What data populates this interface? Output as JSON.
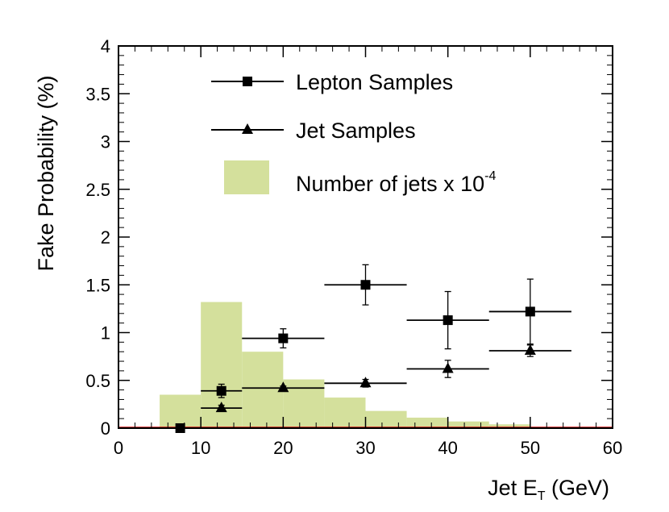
{
  "chart_data": {
    "type": "scatter",
    "title": "",
    "xlabel": {
      "main": "Jet E",
      "subscript": "T",
      "unit": " (GeV)"
    },
    "ylabel": "Fake Probability (%)",
    "xlim": [
      0,
      60
    ],
    "ylim": [
      0,
      4
    ],
    "xticks": [
      "0",
      "10",
      "20",
      "30",
      "40",
      "50",
      "60"
    ],
    "yticks": [
      "0",
      "0.5",
      "1",
      "1.5",
      "2",
      "2.5",
      "3",
      "3.5",
      "4"
    ],
    "legend_position": "top-center",
    "colors": {
      "histogram_fill": "#d4e09c",
      "marker": "#000000",
      "frame": "#000000",
      "histogram_line": "#cc0000"
    },
    "series": [
      {
        "name": "Lepton Samples",
        "marker": "square",
        "points": [
          {
            "x": 7.5,
            "y": 0.0,
            "xerr": 0,
            "yerr": 0
          },
          {
            "x": 12.5,
            "y": 0.39,
            "xerr": 2.5,
            "yerr": 0.07
          },
          {
            "x": 20,
            "y": 0.94,
            "xerr": 5,
            "yerr": 0.1
          },
          {
            "x": 30,
            "y": 1.5,
            "xerr": 5,
            "yerr": 0.21
          },
          {
            "x": 40,
            "y": 1.13,
            "xerr": 5,
            "yerr": 0.3
          },
          {
            "x": 50,
            "y": 1.22,
            "xerr": 5,
            "yerr": 0.34
          }
        ]
      },
      {
        "name": "Jet Samples",
        "marker": "triangle",
        "points": [
          {
            "x": 12.5,
            "y": 0.21,
            "xerr": 2.5,
            "yerr": 0.03
          },
          {
            "x": 20,
            "y": 0.42,
            "xerr": 5,
            "yerr": 0.02
          },
          {
            "x": 30,
            "y": 0.47,
            "xerr": 5,
            "yerr": 0.04
          },
          {
            "x": 40,
            "y": 0.62,
            "xerr": 5,
            "yerr": 0.09
          },
          {
            "x": 50,
            "y": 0.81,
            "xerr": 5,
            "yerr": 0.06
          }
        ]
      }
    ],
    "histogram": {
      "name": "Number of jets x 10",
      "name_exponent": "-4",
      "bins": [
        {
          "x0": 5,
          "x1": 10,
          "y": 0.35
        },
        {
          "x0": 10,
          "x1": 15,
          "y": 1.32
        },
        {
          "x0": 15,
          "x1": 20,
          "y": 0.8
        },
        {
          "x0": 20,
          "x1": 25,
          "y": 0.51
        },
        {
          "x0": 25,
          "x1": 30,
          "y": 0.32
        },
        {
          "x0": 30,
          "x1": 35,
          "y": 0.18
        },
        {
          "x0": 35,
          "x1": 40,
          "y": 0.11
        },
        {
          "x0": 40,
          "x1": 45,
          "y": 0.07
        },
        {
          "x0": 45,
          "x1": 50,
          "y": 0.04
        }
      ]
    }
  }
}
